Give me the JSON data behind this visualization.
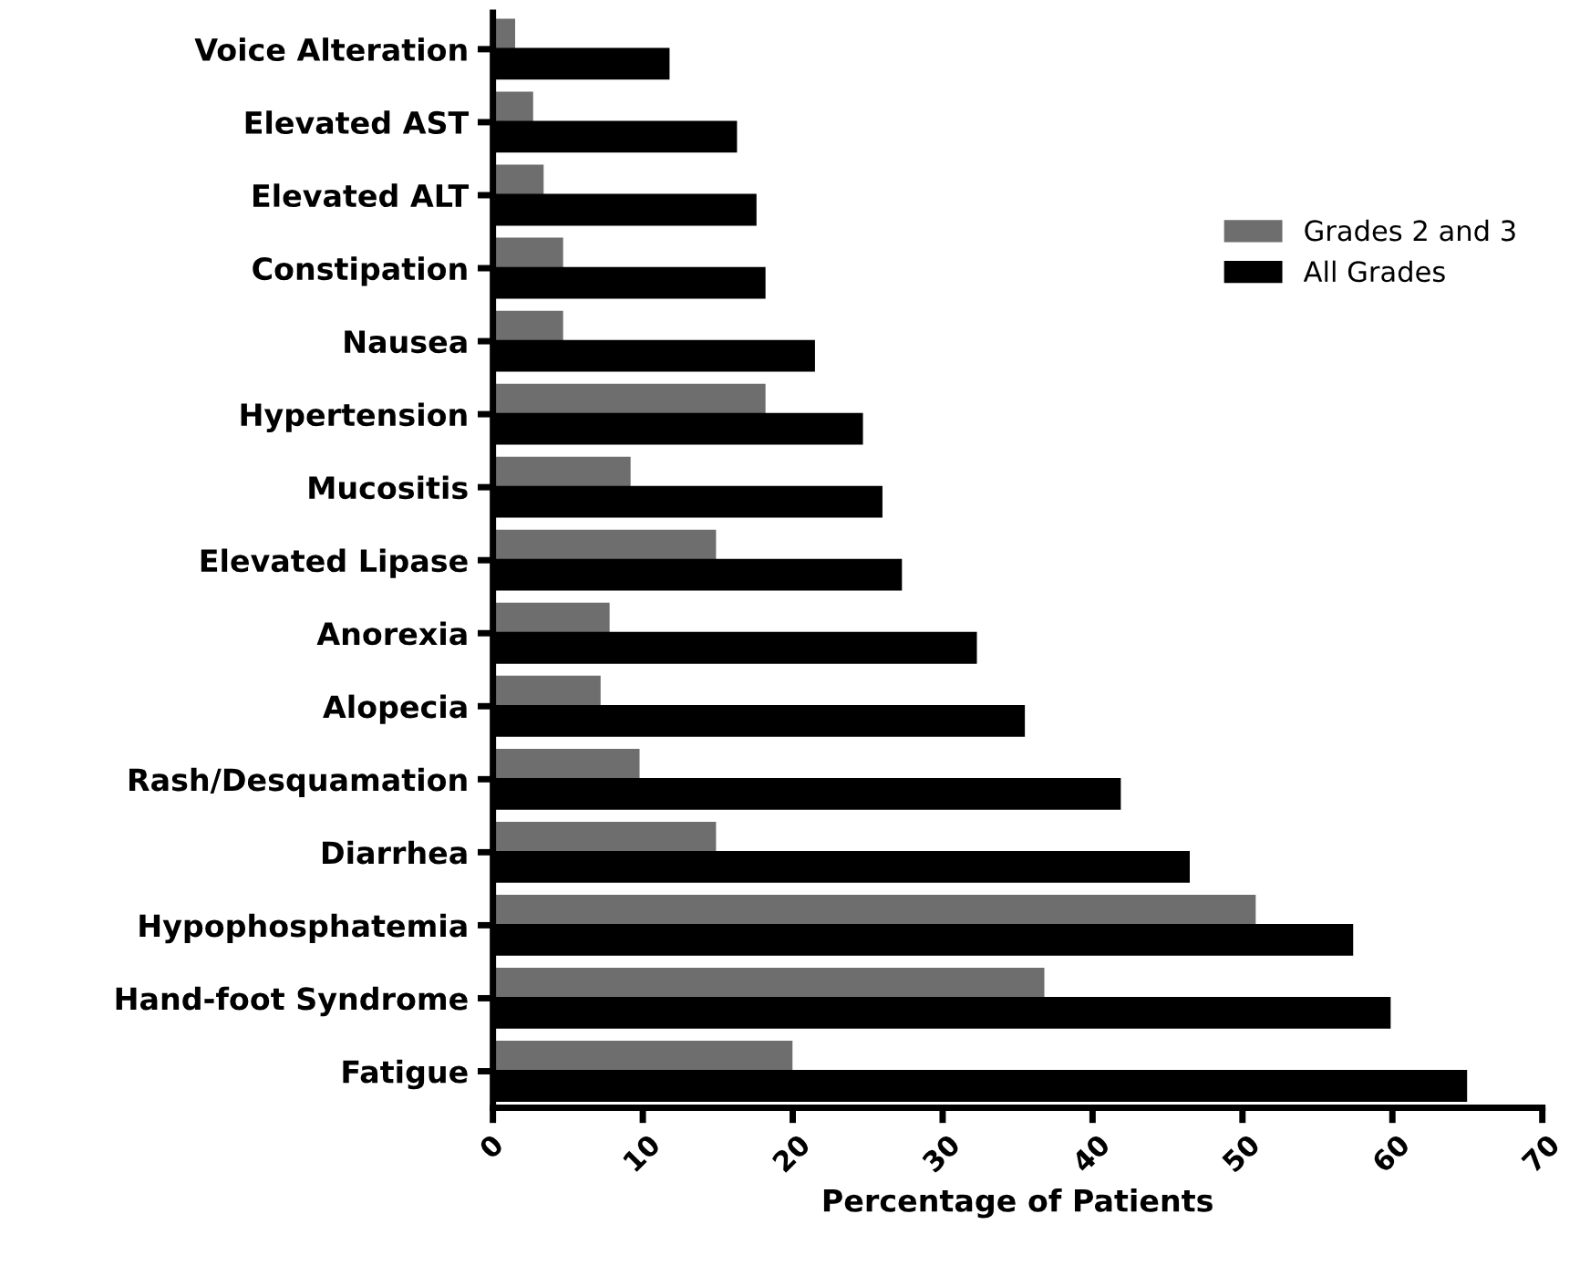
{
  "chart_data": {
    "type": "bar",
    "orientation": "horizontal",
    "xlabel": "Percentage of Patients",
    "categories": [
      "Voice Alteration",
      "Elevated AST",
      "Elevated ALT",
      "Constipation",
      "Nausea",
      "Hypertension",
      "Mucositis",
      "Elevated Lipase",
      "Anorexia",
      "Alopecia",
      "Rash/Desquamation",
      "Diarrhea",
      "Hypophosphatemia",
      "Hand-foot Syndrome",
      "Fatigue"
    ],
    "series": [
      {
        "name": "Grades 2 and 3",
        "color": "#6e6e6e",
        "values": [
          1.4,
          2.6,
          3.3,
          4.6,
          4.6,
          18.1,
          9.1,
          14.8,
          7.7,
          7.1,
          9.7,
          14.8,
          50.8,
          36.7,
          19.9
        ]
      },
      {
        "name": "All Grades",
        "color": "#000000",
        "values": [
          11.7,
          16.2,
          17.5,
          18.1,
          21.4,
          24.6,
          25.9,
          27.2,
          32.2,
          35.4,
          41.8,
          46.4,
          57.3,
          59.8,
          64.9
        ]
      }
    ],
    "xlim": [
      0,
      70
    ],
    "xticks": [
      0,
      10,
      20,
      30,
      40,
      50,
      60,
      70
    ],
    "grid": false,
    "legend": "right"
  }
}
